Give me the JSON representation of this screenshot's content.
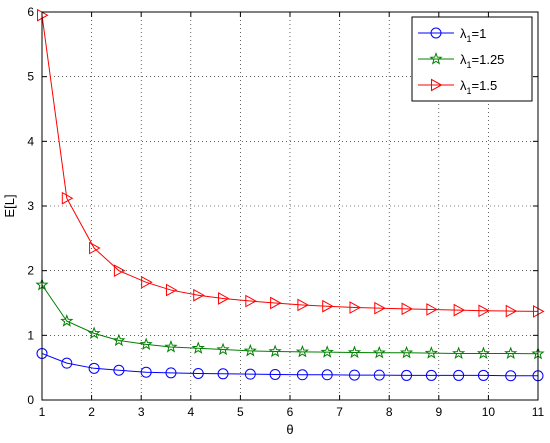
{
  "chart_data": {
    "type": "line",
    "title": "",
    "xlabel": "θ",
    "ylabel": "E[L]",
    "xlim": [
      1,
      11
    ],
    "ylim": [
      0,
      6
    ],
    "xticks": [
      "1",
      "2",
      "3",
      "4",
      "5",
      "6",
      "7",
      "8",
      "9",
      "10",
      "11"
    ],
    "yticks": [
      "0",
      "1",
      "2",
      "3",
      "4",
      "5",
      "6"
    ],
    "grid": true,
    "legend_position": "top-right",
    "x": [
      1,
      1.5,
      2.05,
      2.55,
      3.1,
      3.6,
      4.15,
      4.65,
      5.2,
      5.7,
      6.25,
      6.75,
      7.3,
      7.8,
      8.35,
      8.85,
      9.4,
      9.9,
      10.45,
      11
    ],
    "series": [
      {
        "name_main": "λ",
        "name_sub": "1",
        "name_rest": "=1",
        "color": "#0000ff",
        "marker": "circle",
        "values": [
          0.72,
          0.57,
          0.49,
          0.46,
          0.43,
          0.42,
          0.41,
          0.405,
          0.4,
          0.395,
          0.39,
          0.39,
          0.385,
          0.385,
          0.38,
          0.38,
          0.38,
          0.38,
          0.375,
          0.375
        ]
      },
      {
        "name_main": "λ",
        "name_sub": "1",
        "name_rest": "=1.25",
        "color": "#008000",
        "marker": "star",
        "values": [
          1.78,
          1.22,
          1.03,
          0.92,
          0.86,
          0.82,
          0.8,
          0.78,
          0.76,
          0.75,
          0.745,
          0.74,
          0.735,
          0.73,
          0.73,
          0.725,
          0.72,
          0.72,
          0.72,
          0.715
        ]
      },
      {
        "name_main": "λ",
        "name_sub": "1",
        "name_rest": "=1.5",
        "color": "#ff0000",
        "marker": "triangle-right",
        "values": [
          5.95,
          3.12,
          2.35,
          2.0,
          1.82,
          1.7,
          1.62,
          1.57,
          1.53,
          1.5,
          1.47,
          1.45,
          1.43,
          1.42,
          1.41,
          1.4,
          1.39,
          1.38,
          1.375,
          1.37
        ]
      }
    ]
  }
}
